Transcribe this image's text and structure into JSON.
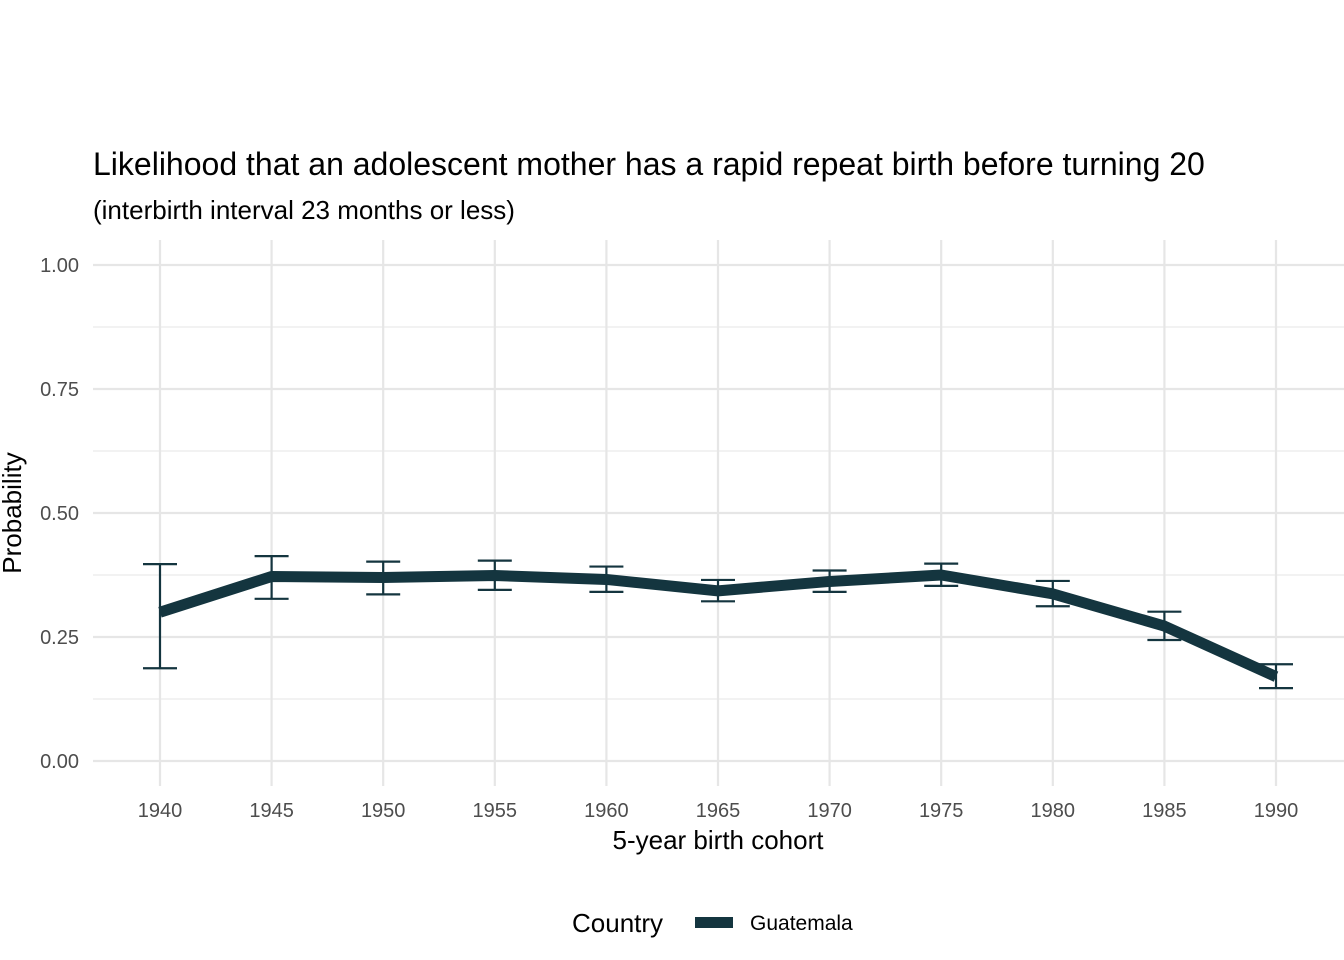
{
  "chart_data": {
    "type": "line",
    "title": "Likelihood that an adolescent mother has a rapid repeat birth before turning 20",
    "subtitle": "(interbirth interval 23 months or less)",
    "xlabel": "5-year birth cohort",
    "ylabel": "Probability",
    "x": [
      1940,
      1945,
      1950,
      1955,
      1960,
      1965,
      1970,
      1975,
      1980,
      1985,
      1990
    ],
    "xticks": [
      "1940",
      "1945",
      "1950",
      "1955",
      "1960",
      "1965",
      "1970",
      "1975",
      "1980",
      "1985",
      "1990"
    ],
    "yticks": [
      "0.00",
      "0.25",
      "0.50",
      "0.75",
      "1.00"
    ],
    "ylim": [
      0,
      1
    ],
    "xlim": [
      1937,
      1991.5
    ],
    "grid": true,
    "legend": {
      "title": "Country",
      "position": "bottom"
    },
    "series": [
      {
        "name": "Guatemala",
        "color": "#14353f",
        "values": [
          0.3,
          0.372,
          0.37,
          0.374,
          0.366,
          0.343,
          0.362,
          0.375,
          0.337,
          0.272,
          0.17
        ],
        "lower": [
          0.187,
          0.327,
          0.336,
          0.345,
          0.341,
          0.322,
          0.341,
          0.353,
          0.312,
          0.244,
          0.147
        ],
        "upper": [
          0.397,
          0.413,
          0.402,
          0.404,
          0.392,
          0.365,
          0.384,
          0.398,
          0.363,
          0.301,
          0.195
        ]
      }
    ]
  }
}
